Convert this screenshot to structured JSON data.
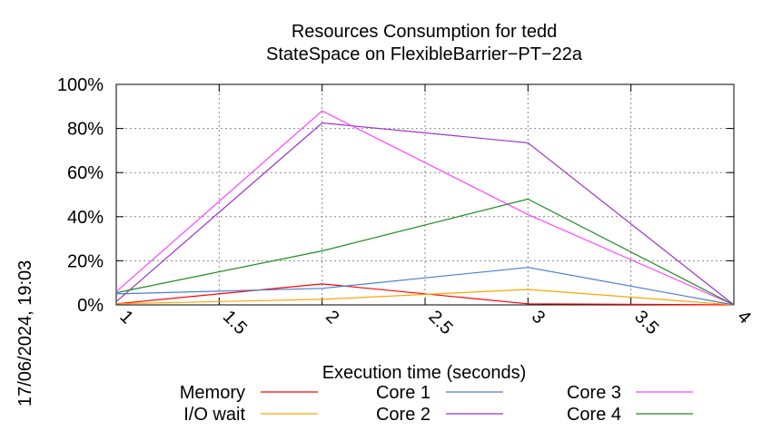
{
  "chart_data": {
    "type": "line",
    "title": "Resources Consumption for tedd",
    "subtitle": "StateSpace on FlexibleBarrier−PT−22a",
    "xlabel": "Execution time (seconds)",
    "ylabel": "",
    "side_label": "17/06/2024, 19:03",
    "xlim": [
      1,
      4
    ],
    "ylim": [
      0,
      100
    ],
    "x_ticks": [
      1,
      1.5,
      2,
      2.5,
      3,
      3.5,
      4
    ],
    "x_tick_labels": [
      "1",
      "1.5",
      "2",
      "2.5",
      "3",
      "3.5",
      "4"
    ],
    "y_ticks": [
      0,
      20,
      40,
      60,
      80,
      100
    ],
    "y_tick_labels": [
      "0%",
      "20%",
      "40%",
      "60%",
      "80%",
      "100%"
    ],
    "grid": true,
    "legend_position": "bottom",
    "x": [
      1,
      2,
      3,
      4
    ],
    "series": [
      {
        "name": "Memory",
        "color": "#ff0000",
        "values": [
          0.5,
          9.5,
          0.5,
          0
        ]
      },
      {
        "name": "I/O wait",
        "color": "#ffa500",
        "values": [
          0.5,
          2.5,
          7.0,
          0
        ]
      },
      {
        "name": "Core 1",
        "color": "#4a7fd4",
        "values": [
          5.0,
          7.5,
          17.0,
          0
        ]
      },
      {
        "name": "Core 2",
        "color": "#9932cc",
        "values": [
          1.5,
          82.5,
          73.5,
          0
        ]
      },
      {
        "name": "Core 3",
        "color": "#ff44ff",
        "values": [
          6.0,
          88.0,
          41.0,
          0
        ]
      },
      {
        "name": "Core 4",
        "color": "#228b22",
        "values": [
          5.5,
          24.5,
          48.0,
          0
        ]
      }
    ]
  }
}
